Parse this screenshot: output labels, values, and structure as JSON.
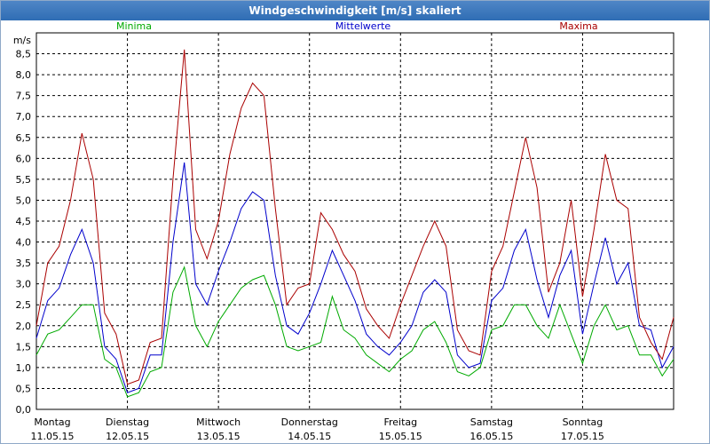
{
  "window": {
    "title": "Windgeschwindigkeit [m/s] skaliert"
  },
  "colors": {
    "minima": "#00aa00",
    "mittel": "#0000cc",
    "maxima": "#aa0000",
    "grid": "#000000"
  },
  "chart_data": {
    "type": "line",
    "title": "Windgeschwindigkeit [m/s] skaliert",
    "unit_label": "m/s",
    "ylim": [
      0,
      9
    ],
    "y_ticks": [
      "0,0",
      "0,5",
      "1,0",
      "1,5",
      "2,0",
      "2,5",
      "3,0",
      "3,5",
      "4,0",
      "4,5",
      "5,0",
      "5,5",
      "6,0",
      "6,5",
      "7,0",
      "7,5",
      "8,0",
      "8,5"
    ],
    "x_ticks": [
      {
        "day": "Montag",
        "date": "11.05.15"
      },
      {
        "day": "Dienstag",
        "date": "12.05.15"
      },
      {
        "day": "Mittwoch",
        "date": "13.05.15"
      },
      {
        "day": "Donnerstag",
        "date": "14.05.15"
      },
      {
        "day": "Freitag",
        "date": "15.05.15"
      },
      {
        "day": "Samstag",
        "date": "16.05.15"
      },
      {
        "day": "Sonntag",
        "date": "17.05.15"
      }
    ],
    "x_range_days": [
      0,
      7
    ],
    "grid": true,
    "legend_position": "top",
    "series": [
      {
        "name": "Minima",
        "color": "#00aa00",
        "x": [
          0,
          0.125,
          0.25,
          0.375,
          0.5,
          0.625,
          0.75,
          0.875,
          1,
          1.125,
          1.25,
          1.375,
          1.5,
          1.625,
          1.75,
          1.875,
          2,
          2.125,
          2.25,
          2.375,
          2.5,
          2.625,
          2.75,
          2.875,
          3,
          3.125,
          3.25,
          3.375,
          3.5,
          3.625,
          3.75,
          3.875,
          4,
          4.125,
          4.25,
          4.375,
          4.5,
          4.625,
          4.75,
          4.875,
          5,
          5.125,
          5.25,
          5.375,
          5.5,
          5.625,
          5.75,
          5.875,
          6,
          6.125,
          6.25,
          6.375,
          6.5,
          6.625,
          6.75,
          6.875,
          7
        ],
        "values": [
          1.3,
          1.8,
          1.9,
          2.2,
          2.5,
          2.5,
          1.2,
          1.0,
          0.3,
          0.4,
          0.9,
          1.0,
          2.8,
          3.4,
          2.0,
          1.5,
          2.1,
          2.5,
          2.9,
          3.1,
          3.2,
          2.5,
          1.5,
          1.4,
          1.5,
          1.6,
          2.7,
          1.9,
          1.7,
          1.3,
          1.1,
          0.9,
          1.2,
          1.4,
          1.9,
          2.1,
          1.6,
          0.9,
          0.8,
          1.0,
          1.9,
          2.0,
          2.5,
          2.5,
          2.0,
          1.7,
          2.5,
          1.8,
          1.1,
          2.0,
          2.5,
          1.9,
          2.0,
          1.3,
          1.3,
          0.8,
          1.2
        ]
      },
      {
        "name": "Mittelwerte",
        "color": "#0000cc",
        "x": [
          0,
          0.125,
          0.25,
          0.375,
          0.5,
          0.625,
          0.75,
          0.875,
          1,
          1.125,
          1.25,
          1.375,
          1.5,
          1.625,
          1.75,
          1.875,
          2,
          2.125,
          2.25,
          2.375,
          2.5,
          2.625,
          2.75,
          2.875,
          3,
          3.125,
          3.25,
          3.375,
          3.5,
          3.625,
          3.75,
          3.875,
          4,
          4.125,
          4.25,
          4.375,
          4.5,
          4.625,
          4.75,
          4.875,
          5,
          5.125,
          5.25,
          5.375,
          5.5,
          5.625,
          5.75,
          5.875,
          6,
          6.125,
          6.25,
          6.375,
          6.5,
          6.625,
          6.75,
          6.875,
          7
        ],
        "values": [
          1.7,
          2.6,
          2.9,
          3.7,
          4.3,
          3.5,
          1.5,
          1.2,
          0.4,
          0.5,
          1.3,
          1.3,
          4.0,
          5.9,
          3.0,
          2.5,
          3.3,
          4.0,
          4.8,
          5.2,
          5.0,
          3.2,
          2.0,
          1.8,
          2.3,
          3.0,
          3.8,
          3.2,
          2.6,
          1.8,
          1.5,
          1.3,
          1.6,
          2.0,
          2.8,
          3.1,
          2.8,
          1.3,
          1.0,
          1.1,
          2.6,
          2.9,
          3.8,
          4.3,
          3.1,
          2.2,
          3.2,
          3.8,
          1.8,
          3.0,
          4.1,
          3.0,
          3.5,
          2.0,
          1.9,
          1.0,
          1.5
        ]
      },
      {
        "name": "Maxima",
        "color": "#aa0000",
        "x": [
          0,
          0.125,
          0.25,
          0.375,
          0.5,
          0.625,
          0.75,
          0.875,
          1,
          1.125,
          1.25,
          1.375,
          1.5,
          1.625,
          1.75,
          1.875,
          2,
          2.125,
          2.25,
          2.375,
          2.5,
          2.625,
          2.75,
          2.875,
          3,
          3.125,
          3.25,
          3.375,
          3.5,
          3.625,
          3.75,
          3.875,
          4,
          4.125,
          4.25,
          4.375,
          4.5,
          4.625,
          4.75,
          4.875,
          5,
          5.125,
          5.25,
          5.375,
          5.5,
          5.625,
          5.75,
          5.875,
          6,
          6.125,
          6.25,
          6.375,
          6.5,
          6.625,
          6.75,
          6.875,
          7
        ],
        "values": [
          2.0,
          3.5,
          3.9,
          5.0,
          6.6,
          5.5,
          2.3,
          1.8,
          0.6,
          0.7,
          1.6,
          1.7,
          5.5,
          8.6,
          4.3,
          3.6,
          4.5,
          6.1,
          7.2,
          7.8,
          7.5,
          4.8,
          2.5,
          2.9,
          3.0,
          4.7,
          4.3,
          3.7,
          3.3,
          2.4,
          2.0,
          1.7,
          2.5,
          3.2,
          3.9,
          4.5,
          3.9,
          1.9,
          1.4,
          1.3,
          3.3,
          3.9,
          5.2,
          6.5,
          5.3,
          2.8,
          3.5,
          5.0,
          2.7,
          4.3,
          6.1,
          5.0,
          4.8,
          2.2,
          1.6,
          1.2,
          2.2
        ]
      }
    ]
  }
}
